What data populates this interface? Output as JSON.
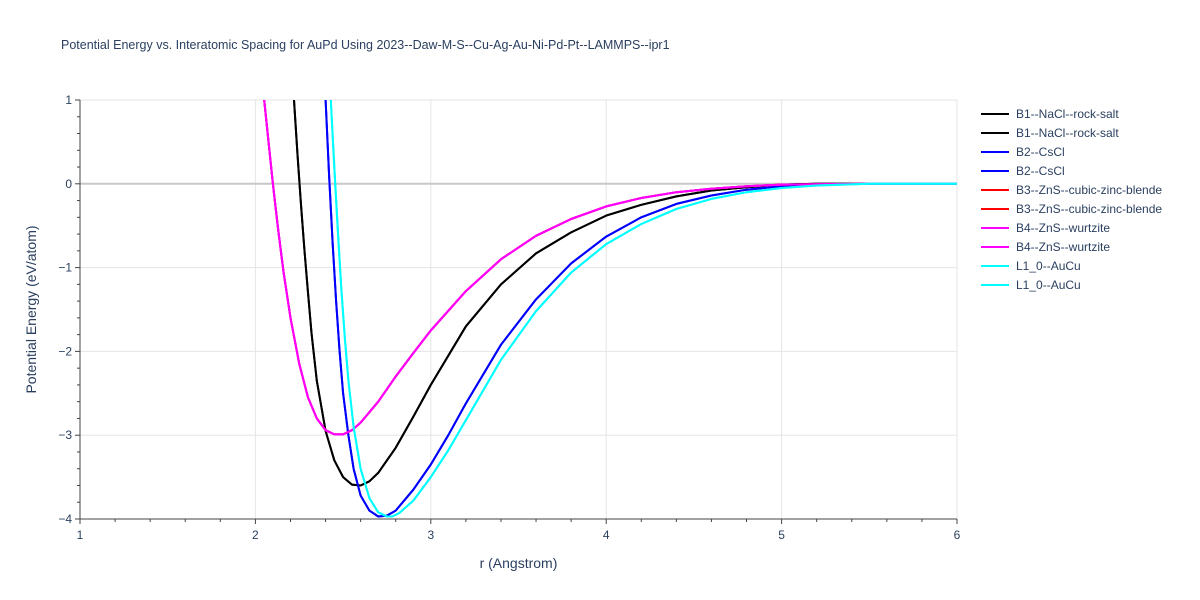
{
  "chart_data": {
    "type": "line",
    "title": "Potential Energy vs. Interatomic Spacing for AuPd Using 2023--Daw-M-S--Cu-Ag-Au-Ni-Pd-Pt--LAMMPS--ipr1",
    "xlabel": "r (Angstrom)",
    "ylabel": "Potential Energy (eV/atom)",
    "xlim": [
      1,
      6
    ],
    "ylim": [
      -4,
      1
    ],
    "x_ticks": [
      1,
      2,
      3,
      4,
      5,
      6
    ],
    "y_ticks": [
      1,
      0,
      -1,
      -2,
      -3,
      -4
    ],
    "grid": true,
    "legend_position": "right",
    "series": [
      {
        "name": "B1--NaCl--rock-salt",
        "color": "#000000",
        "x": [
          2.22,
          2.24,
          2.26,
          2.28,
          2.3,
          2.32,
          2.35,
          2.4,
          2.45,
          2.5,
          2.55,
          2.6,
          2.65,
          2.7,
          2.8,
          2.9,
          3.0,
          3.2,
          3.4,
          3.6,
          3.8,
          4.0,
          4.2,
          4.4,
          4.6,
          4.8,
          5.0,
          5.2,
          5.5,
          6.0
        ],
        "y": [
          1.0,
          0.35,
          -0.25,
          -0.8,
          -1.3,
          -1.78,
          -2.35,
          -2.95,
          -3.3,
          -3.5,
          -3.59,
          -3.6,
          -3.55,
          -3.45,
          -3.15,
          -2.78,
          -2.4,
          -1.7,
          -1.2,
          -0.83,
          -0.58,
          -0.38,
          -0.25,
          -0.15,
          -0.08,
          -0.04,
          -0.01,
          0.0,
          0.0,
          0.0
        ]
      },
      {
        "name": "B1--NaCl--rock-salt",
        "color": "#000000",
        "x": [
          2.22,
          2.24,
          2.26,
          2.28,
          2.3,
          2.32,
          2.35,
          2.4,
          2.45,
          2.5,
          2.55,
          2.6,
          2.65,
          2.7,
          2.8,
          2.9,
          3.0,
          3.2,
          3.4,
          3.6,
          3.8,
          4.0,
          4.2,
          4.4,
          4.6,
          4.8,
          5.0,
          5.2,
          5.5,
          6.0
        ],
        "y": [
          1.0,
          0.35,
          -0.25,
          -0.8,
          -1.3,
          -1.78,
          -2.35,
          -2.95,
          -3.3,
          -3.5,
          -3.59,
          -3.6,
          -3.55,
          -3.45,
          -3.15,
          -2.78,
          -2.4,
          -1.7,
          -1.2,
          -0.83,
          -0.58,
          -0.38,
          -0.25,
          -0.15,
          -0.08,
          -0.04,
          -0.01,
          0.0,
          0.0,
          0.0
        ]
      },
      {
        "name": "B2--CsCl",
        "color": "#0000ff",
        "x": [
          2.4,
          2.42,
          2.44,
          2.46,
          2.48,
          2.5,
          2.53,
          2.56,
          2.6,
          2.65,
          2.7,
          2.75,
          2.8,
          2.9,
          3.0,
          3.1,
          3.2,
          3.4,
          3.6,
          3.8,
          4.0,
          4.2,
          4.4,
          4.6,
          4.8,
          5.0,
          5.2,
          5.5,
          6.0
        ],
        "y": [
          1.0,
          0.1,
          -0.7,
          -1.4,
          -2.0,
          -2.5,
          -3.0,
          -3.4,
          -3.72,
          -3.9,
          -3.97,
          -3.96,
          -3.9,
          -3.65,
          -3.35,
          -3.0,
          -2.62,
          -1.92,
          -1.38,
          -0.95,
          -0.63,
          -0.4,
          -0.24,
          -0.14,
          -0.07,
          -0.03,
          -0.01,
          0.0,
          0.0
        ]
      },
      {
        "name": "B2--CsCl",
        "color": "#0000ff",
        "x": [
          2.4,
          2.42,
          2.44,
          2.46,
          2.48,
          2.5,
          2.53,
          2.56,
          2.6,
          2.65,
          2.7,
          2.75,
          2.8,
          2.9,
          3.0,
          3.1,
          3.2,
          3.4,
          3.6,
          3.8,
          4.0,
          4.2,
          4.4,
          4.6,
          4.8,
          5.0,
          5.2,
          5.5,
          6.0
        ],
        "y": [
          1.0,
          0.1,
          -0.7,
          -1.4,
          -2.0,
          -2.5,
          -3.0,
          -3.4,
          -3.72,
          -3.9,
          -3.97,
          -3.96,
          -3.9,
          -3.65,
          -3.35,
          -3.0,
          -2.62,
          -1.92,
          -1.38,
          -0.95,
          -0.63,
          -0.4,
          -0.24,
          -0.14,
          -0.07,
          -0.03,
          -0.01,
          0.0,
          0.0
        ]
      },
      {
        "name": "B3--ZnS--cubic-zinc-blende",
        "color": "#ff0000",
        "x": [
          2.05,
          2.08,
          2.1,
          2.13,
          2.16,
          2.2,
          2.25,
          2.3,
          2.35,
          2.4,
          2.45,
          2.5,
          2.55,
          2.6,
          2.7,
          2.8,
          2.9,
          3.0,
          3.2,
          3.4,
          3.6,
          3.8,
          4.0,
          4.2,
          4.4,
          4.6,
          4.8,
          5.0,
          5.5,
          6.0
        ],
        "y": [
          1.0,
          0.4,
          0.0,
          -0.55,
          -1.05,
          -1.6,
          -2.15,
          -2.55,
          -2.8,
          -2.94,
          -2.99,
          -2.99,
          -2.94,
          -2.85,
          -2.6,
          -2.3,
          -2.02,
          -1.75,
          -1.28,
          -0.9,
          -0.62,
          -0.42,
          -0.27,
          -0.17,
          -0.1,
          -0.06,
          -0.03,
          -0.01,
          0.0,
          0.0
        ]
      },
      {
        "name": "B3--ZnS--cubic-zinc-blende",
        "color": "#ff0000",
        "x": [
          2.05,
          2.08,
          2.1,
          2.13,
          2.16,
          2.2,
          2.25,
          2.3,
          2.35,
          2.4,
          2.45,
          2.5,
          2.55,
          2.6,
          2.7,
          2.8,
          2.9,
          3.0,
          3.2,
          3.4,
          3.6,
          3.8,
          4.0,
          4.2,
          4.4,
          4.6,
          4.8,
          5.0,
          5.5,
          6.0
        ],
        "y": [
          1.0,
          0.4,
          0.0,
          -0.55,
          -1.05,
          -1.6,
          -2.15,
          -2.55,
          -2.8,
          -2.94,
          -2.99,
          -2.99,
          -2.94,
          -2.85,
          -2.6,
          -2.3,
          -2.02,
          -1.75,
          -1.28,
          -0.9,
          -0.62,
          -0.42,
          -0.27,
          -0.17,
          -0.1,
          -0.06,
          -0.03,
          -0.01,
          0.0,
          0.0
        ]
      },
      {
        "name": "B4--ZnS--wurtzite",
        "color": "#ff00ff",
        "x": [
          2.05,
          2.08,
          2.1,
          2.13,
          2.16,
          2.2,
          2.25,
          2.3,
          2.35,
          2.4,
          2.45,
          2.5,
          2.55,
          2.6,
          2.7,
          2.8,
          2.9,
          3.0,
          3.2,
          3.4,
          3.6,
          3.8,
          4.0,
          4.2,
          4.4,
          4.6,
          4.8,
          5.0,
          5.5,
          6.0
        ],
        "y": [
          1.0,
          0.4,
          0.0,
          -0.55,
          -1.05,
          -1.6,
          -2.15,
          -2.55,
          -2.8,
          -2.94,
          -2.99,
          -2.99,
          -2.94,
          -2.85,
          -2.6,
          -2.3,
          -2.02,
          -1.75,
          -1.28,
          -0.9,
          -0.62,
          -0.42,
          -0.27,
          -0.17,
          -0.1,
          -0.06,
          -0.03,
          -0.01,
          0.0,
          0.0
        ]
      },
      {
        "name": "B4--ZnS--wurtzite",
        "color": "#ff00ff",
        "x": [
          2.05,
          2.08,
          2.1,
          2.13,
          2.16,
          2.2,
          2.25,
          2.3,
          2.35,
          2.4,
          2.45,
          2.5,
          2.55,
          2.6,
          2.7,
          2.8,
          2.9,
          3.0,
          3.2,
          3.4,
          3.6,
          3.8,
          4.0,
          4.2,
          4.4,
          4.6,
          4.8,
          5.0,
          5.5,
          6.0
        ],
        "y": [
          1.0,
          0.4,
          0.0,
          -0.55,
          -1.05,
          -1.6,
          -2.15,
          -2.55,
          -2.8,
          -2.94,
          -2.99,
          -2.99,
          -2.94,
          -2.85,
          -2.6,
          -2.3,
          -2.02,
          -1.75,
          -1.28,
          -0.9,
          -0.62,
          -0.42,
          -0.27,
          -0.17,
          -0.1,
          -0.06,
          -0.03,
          -0.01,
          0.0,
          0.0
        ]
      },
      {
        "name": "L1_0--AuCu",
        "color": "#00ffff",
        "x": [
          2.43,
          2.45,
          2.47,
          2.49,
          2.51,
          2.53,
          2.56,
          2.6,
          2.65,
          2.7,
          2.75,
          2.78,
          2.82,
          2.9,
          3.0,
          3.1,
          3.2,
          3.4,
          3.6,
          3.8,
          4.0,
          4.2,
          4.4,
          4.6,
          4.8,
          5.0,
          5.2,
          5.5,
          6.0
        ],
        "y": [
          1.0,
          0.2,
          -0.55,
          -1.25,
          -1.85,
          -2.35,
          -2.9,
          -3.4,
          -3.75,
          -3.92,
          -3.97,
          -3.97,
          -3.93,
          -3.78,
          -3.5,
          -3.18,
          -2.82,
          -2.1,
          -1.52,
          -1.06,
          -0.72,
          -0.48,
          -0.3,
          -0.18,
          -0.1,
          -0.05,
          -0.02,
          0.0,
          0.0
        ]
      },
      {
        "name": "L1_0--AuCu",
        "color": "#00ffff",
        "x": [
          2.43,
          2.45,
          2.47,
          2.49,
          2.51,
          2.53,
          2.56,
          2.6,
          2.65,
          2.7,
          2.75,
          2.78,
          2.82,
          2.9,
          3.0,
          3.1,
          3.2,
          3.4,
          3.6,
          3.8,
          4.0,
          4.2,
          4.4,
          4.6,
          4.8,
          5.0,
          5.2,
          5.5,
          6.0
        ],
        "y": [
          1.0,
          0.2,
          -0.55,
          -1.25,
          -1.85,
          -2.35,
          -2.9,
          -3.4,
          -3.75,
          -3.92,
          -3.97,
          -3.97,
          -3.93,
          -3.78,
          -3.5,
          -3.18,
          -2.82,
          -2.1,
          -1.52,
          -1.06,
          -0.72,
          -0.48,
          -0.3,
          -0.18,
          -0.1,
          -0.05,
          -0.02,
          0.0,
          0.0
        ]
      }
    ]
  }
}
